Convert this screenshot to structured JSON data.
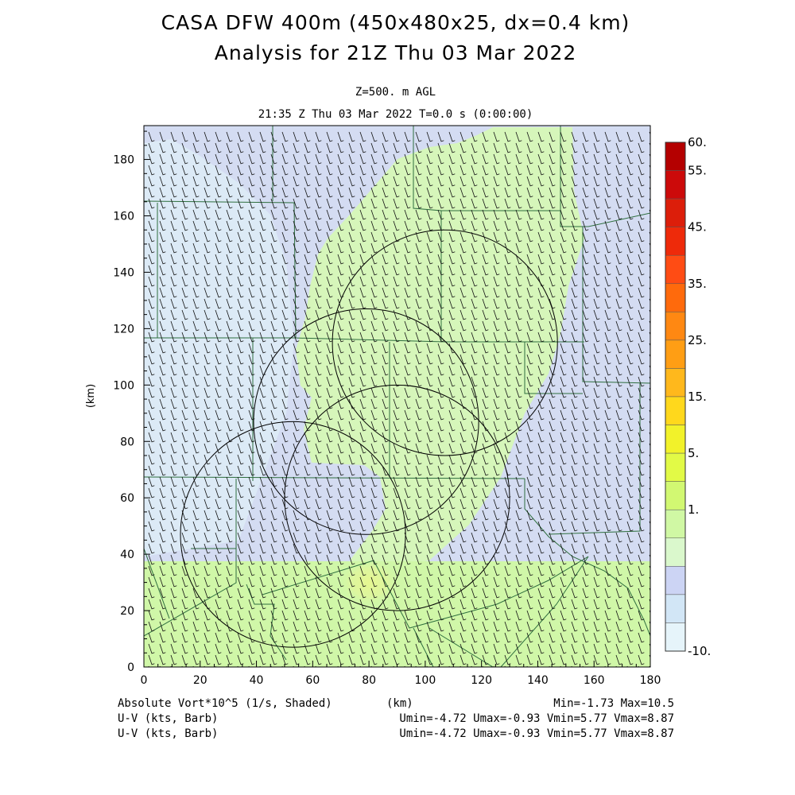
{
  "header": {
    "title_line1": "CASA DFW 400m (450x480x25, dx=0.4 km)",
    "title_line2": "Analysis for 21Z Thu 03 Mar 2022",
    "level": "Z=500. m AGL",
    "valid_time": "21:35 Z Thu 03 Mar 2022   T=0.0 s (0:00:00)"
  },
  "footer": {
    "field_label": "Absolute Vort*10^5 (1/s, Shaded)",
    "axis_unit": "(km)",
    "field_minmax": "Min=-1.73 Max=10.5",
    "wind_label_1": "U-V (kts, Barb)",
    "wind_stats_1": "Umin=-4.72 Umax=-0.93 Vmin=5.77 Vmax=8.87",
    "wind_label_2": "U-V (kts, Barb)",
    "wind_stats_2": "Umin=-4.72 Umax=-0.93 Vmin=5.77 Vmax=8.87"
  },
  "chart_data": {
    "type": "heatmap",
    "xlabel": "",
    "ylabel": "(km)",
    "xlim": [
      0,
      180
    ],
    "ylim": [
      0,
      192
    ],
    "x_ticks": [
      0,
      20,
      40,
      60,
      80,
      100,
      120,
      140,
      160,
      180
    ],
    "y_ticks": [
      0,
      20,
      40,
      60,
      80,
      100,
      120,
      140,
      160,
      180
    ],
    "colorbar": {
      "label_values": [
        "60.",
        "55.",
        "45.",
        "35.",
        "25.",
        "15.",
        "5.",
        "1.",
        "-10."
      ],
      "colors_top_to_bottom": [
        "#b40000",
        "#cc0a0a",
        "#dc1e0a",
        "#ee2a0a",
        "#ff4c14",
        "#ff6a0c",
        "#ff8812",
        "#ff9e14",
        "#ffb81c",
        "#ffd81c",
        "#f2f22a",
        "#e2fa46",
        "#d2f872",
        "#d0f8a4",
        "#daf8cc",
        "#ccd4f4",
        "#d2e6f6",
        "#e6f4fa"
      ]
    },
    "field": {
      "name": "Absolute Vort*10^5 (1/s, Shaded)",
      "min": -1.73,
      "max": 10.5,
      "background_color": "#d4dcf2",
      "western_band_color": "#dceaf6",
      "plume_color": "#d6f6ba",
      "southern_band_color": "#d0f7a8",
      "southern_band_top_km": 37.5,
      "peak_color": "#e6f790",
      "peak_center_km": [
        80,
        30
      ]
    },
    "wind": {
      "units": "kts",
      "u_min": -4.72,
      "u_max": -0.93,
      "v_min": 5.77,
      "v_max": 8.87,
      "representative_u": -2.5,
      "representative_v": 7.5
    },
    "radar_range_rings": [
      {
        "center_km": [
          107,
          115
        ],
        "radius_km": 40
      },
      {
        "center_km": [
          79,
          87
        ],
        "radius_km": 40
      },
      {
        "center_km": [
          90,
          60
        ],
        "radius_km": 40
      },
      {
        "center_km": [
          53,
          47
        ],
        "radius_km": 40
      }
    ]
  }
}
